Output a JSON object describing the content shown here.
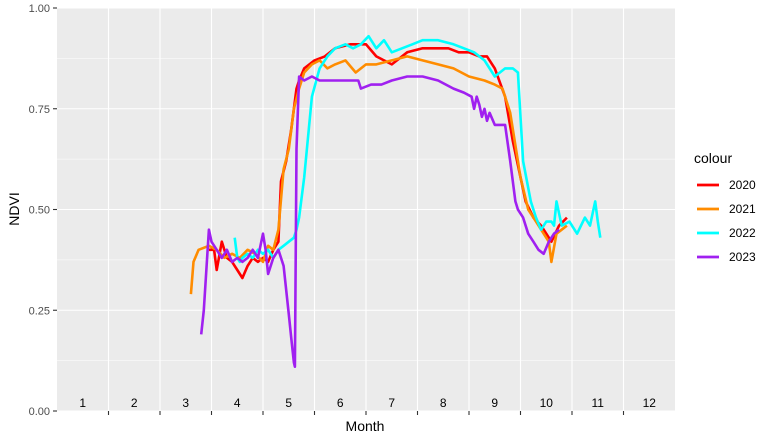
{
  "chart_data": {
    "type": "line",
    "xlabel": "Month",
    "ylabel": "NDVI",
    "xlim": [
      0.5,
      12.5
    ],
    "ylim": [
      0,
      1
    ],
    "x_month_labels": [
      "1",
      "2",
      "3",
      "4",
      "5",
      "6",
      "7",
      "8",
      "9",
      "10",
      "11",
      "12"
    ],
    "y_ticks": [
      0,
      0.25,
      0.5,
      0.75,
      1
    ],
    "y_tick_labels": [
      "0.00",
      "0.25",
      "0.50",
      "0.75",
      "1.00"
    ],
    "grid": true,
    "legend": {
      "title": "colour",
      "position": "right"
    },
    "series": [
      {
        "name": "2020",
        "color": "#ff0000",
        "x": [
          3.45,
          3.55,
          3.6,
          3.7,
          3.8,
          3.9,
          4.0,
          4.1,
          4.2,
          4.3,
          4.4,
          4.5,
          4.6,
          4.7,
          4.8,
          4.85,
          4.95,
          5.05,
          5.15,
          5.2,
          5.3,
          5.5,
          5.7,
          5.9,
          6.2,
          6.5,
          6.7,
          7.0,
          7.3,
          7.6,
          7.9,
          8.1,
          8.3,
          8.5,
          8.7,
          8.85,
          9.0,
          9.2,
          9.35,
          9.5,
          9.6,
          9.75,
          9.9,
          10.0,
          10.1,
          10.25,
          10.4
        ],
        "y": [
          0.4,
          0.4,
          0.35,
          0.42,
          0.38,
          0.37,
          0.35,
          0.33,
          0.36,
          0.38,
          0.37,
          0.38,
          0.37,
          0.4,
          0.42,
          0.57,
          0.62,
          0.7,
          0.8,
          0.82,
          0.85,
          0.87,
          0.88,
          0.9,
          0.91,
          0.91,
          0.88,
          0.86,
          0.89,
          0.9,
          0.9,
          0.9,
          0.89,
          0.89,
          0.88,
          0.88,
          0.85,
          0.78,
          0.67,
          0.58,
          0.52,
          0.48,
          0.46,
          0.44,
          0.42,
          0.46,
          0.48
        ]
      },
      {
        "name": "2021",
        "color": "#ff8c00",
        "x": [
          3.1,
          3.15,
          3.25,
          3.45,
          3.6,
          3.75,
          3.9,
          4.05,
          4.2,
          4.35,
          4.5,
          4.6,
          4.7,
          4.8,
          4.9,
          5.0,
          5.1,
          5.2,
          5.3,
          5.45,
          5.6,
          5.75,
          5.9,
          6.1,
          6.3,
          6.5,
          6.7,
          7.0,
          7.3,
          7.6,
          7.9,
          8.2,
          8.5,
          8.8,
          9.0,
          9.15,
          9.3,
          9.5,
          9.65,
          9.8,
          9.95,
          10.05,
          10.1,
          10.2,
          10.3,
          10.4
        ],
        "y": [
          0.29,
          0.37,
          0.4,
          0.41,
          0.4,
          0.38,
          0.39,
          0.38,
          0.4,
          0.39,
          0.37,
          0.41,
          0.4,
          0.45,
          0.6,
          0.65,
          0.75,
          0.8,
          0.84,
          0.86,
          0.87,
          0.85,
          0.86,
          0.87,
          0.84,
          0.86,
          0.86,
          0.87,
          0.88,
          0.87,
          0.86,
          0.85,
          0.83,
          0.82,
          0.81,
          0.8,
          0.74,
          0.58,
          0.5,
          0.47,
          0.44,
          0.42,
          0.37,
          0.44,
          0.45,
          0.46
        ]
      },
      {
        "name": "2022",
        "color": "#00ffff",
        "x": [
          3.95,
          4.0,
          4.05,
          4.1,
          4.2,
          4.3,
          4.4,
          4.5,
          4.6,
          4.7,
          4.8,
          4.9,
          5.0,
          5.1,
          5.15,
          5.2,
          5.3,
          5.45,
          5.6,
          5.75,
          5.9,
          6.1,
          6.25,
          6.4,
          6.55,
          6.7,
          6.85,
          7.0,
          7.2,
          7.4,
          7.6,
          7.9,
          8.2,
          8.4,
          8.6,
          8.8,
          9.0,
          9.1,
          9.2,
          9.35,
          9.45,
          9.55,
          9.7,
          9.8,
          9.9,
          10.0,
          10.1,
          10.15,
          10.2,
          10.3,
          10.45,
          10.6,
          10.75,
          10.85,
          10.95,
          11.0,
          11.05
        ],
        "y": [
          0.43,
          0.38,
          0.37,
          0.38,
          0.39,
          0.38,
          0.4,
          0.39,
          0.4,
          0.38,
          0.4,
          0.41,
          0.42,
          0.43,
          0.45,
          0.48,
          0.58,
          0.78,
          0.85,
          0.88,
          0.9,
          0.91,
          0.9,
          0.91,
          0.93,
          0.9,
          0.92,
          0.89,
          0.9,
          0.91,
          0.92,
          0.92,
          0.91,
          0.9,
          0.89,
          0.87,
          0.83,
          0.84,
          0.85,
          0.85,
          0.84,
          0.62,
          0.52,
          0.48,
          0.45,
          0.47,
          0.47,
          0.46,
          0.52,
          0.46,
          0.47,
          0.44,
          0.48,
          0.46,
          0.52,
          0.47,
          0.43
        ]
      },
      {
        "name": "2023",
        "color": "#a020f0",
        "x": [
          3.3,
          3.35,
          3.45,
          3.5,
          3.6,
          3.7,
          3.8,
          3.9,
          4.0,
          4.1,
          4.2,
          4.3,
          4.4,
          4.5,
          4.55,
          4.6,
          4.7,
          4.8,
          4.9,
          5.0,
          5.05,
          5.1,
          5.12,
          5.15,
          5.2,
          5.3,
          5.45,
          5.6,
          5.8,
          6.0,
          6.2,
          6.35,
          6.4,
          6.6,
          6.8,
          7.0,
          7.3,
          7.6,
          7.9,
          8.2,
          8.4,
          8.55,
          8.6,
          8.65,
          8.7,
          8.75,
          8.8,
          8.85,
          8.9,
          9.0,
          9.1,
          9.2,
          9.3,
          9.4,
          9.45,
          9.55,
          9.65,
          9.75,
          9.85,
          9.95,
          10.05,
          10.15,
          10.25
        ],
        "y": [
          0.19,
          0.25,
          0.45,
          0.42,
          0.4,
          0.38,
          0.4,
          0.37,
          0.38,
          0.37,
          0.38,
          0.4,
          0.38,
          0.44,
          0.4,
          0.34,
          0.38,
          0.4,
          0.36,
          0.24,
          0.18,
          0.12,
          0.11,
          0.65,
          0.83,
          0.82,
          0.83,
          0.82,
          0.82,
          0.82,
          0.82,
          0.82,
          0.8,
          0.81,
          0.81,
          0.82,
          0.83,
          0.83,
          0.82,
          0.8,
          0.79,
          0.78,
          0.75,
          0.78,
          0.76,
          0.73,
          0.75,
          0.72,
          0.74,
          0.71,
          0.71,
          0.71,
          0.62,
          0.52,
          0.5,
          0.48,
          0.44,
          0.42,
          0.4,
          0.39,
          0.42,
          0.44,
          0.45
        ]
      }
    ]
  }
}
